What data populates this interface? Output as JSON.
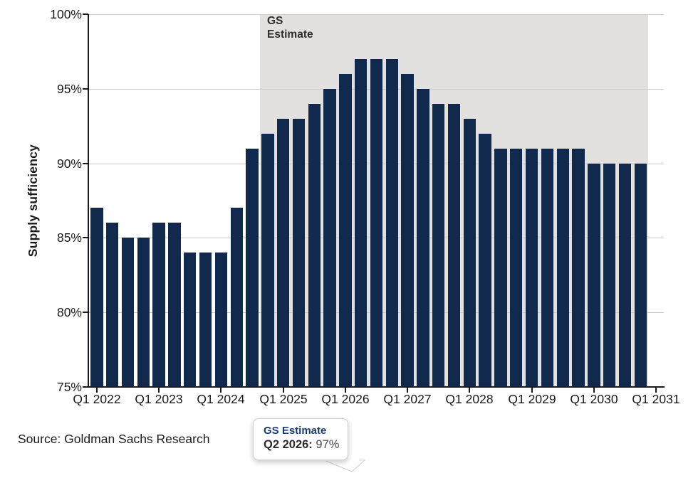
{
  "chart_data": {
    "type": "bar",
    "title": "",
    "ylabel": "Supply sufficiency",
    "ylim": [
      75,
      100
    ],
    "ytick_values": [
      100,
      95,
      90,
      85,
      80,
      75
    ],
    "yticks": [
      "100%",
      "95%",
      "90%",
      "85%",
      "80%",
      "75%"
    ],
    "xticks": [
      "Q1 2022",
      "Q1 2023",
      "Q1 2024",
      "Q1 2025",
      "Q1 2026",
      "Q1 2027",
      "Q1 2028",
      "Q1 2029",
      "Q1 2030",
      "Q1 2031"
    ],
    "categories": [
      "Q1 2022",
      "Q2 2022",
      "Q3 2022",
      "Q4 2022",
      "Q1 2023",
      "Q2 2023",
      "Q3 2023",
      "Q4 2023",
      "Q1 2024",
      "Q2 2024",
      "Q3 2024",
      "Q4 2024",
      "Q1 2025",
      "Q2 2025",
      "Q3 2025",
      "Q4 2025",
      "Q1 2026",
      "Q2 2026",
      "Q3 2026",
      "Q4 2026",
      "Q1 2027",
      "Q2 2027",
      "Q3 2027",
      "Q4 2027",
      "Q1 2028",
      "Q2 2028",
      "Q3 2028",
      "Q4 2028",
      "Q1 2029",
      "Q2 2029",
      "Q3 2029",
      "Q4 2029",
      "Q1 2030",
      "Q2 2030",
      "Q3 2030",
      "Q4 2030"
    ],
    "values": [
      87,
      86,
      85,
      85,
      86,
      86,
      84,
      84,
      84,
      87,
      91,
      92,
      93,
      93,
      94,
      95,
      96,
      97,
      97,
      97,
      96,
      95,
      94,
      94,
      93,
      92,
      91,
      91,
      91,
      91,
      91,
      91,
      90,
      90,
      90,
      90
    ],
    "estimate_start_index": 11,
    "estimate_region_label": "GS\nEstimate",
    "bar_color": "#12294e",
    "estimate_region_color": "#e2e1df",
    "gridline_color": "#c9c9c9",
    "legend_position": "none",
    "grid": true
  },
  "tooltip": {
    "title": "GS Estimate",
    "label": "Q2 2026:",
    "value": "97%"
  },
  "source": "Source: Goldman Sachs Research"
}
